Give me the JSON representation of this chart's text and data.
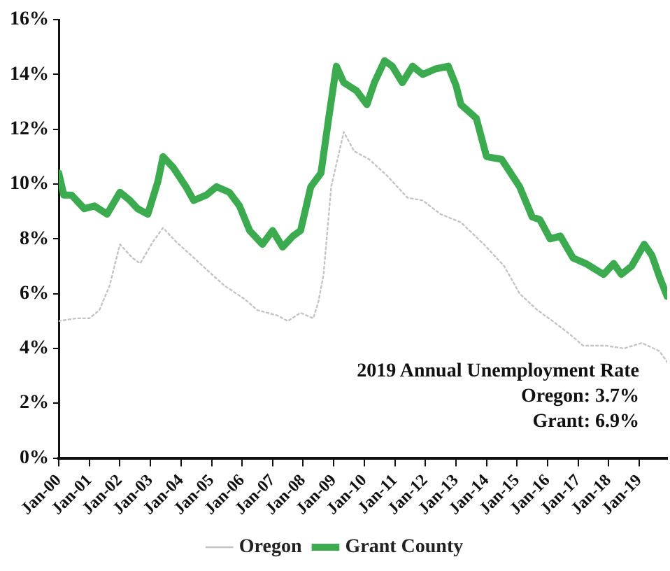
{
  "chart_data": {
    "type": "line",
    "xlim": [
      "2000-01",
      "2019-12"
    ],
    "ylim": [
      0,
      16
    ],
    "yticks": [
      {
        "value": 0,
        "label": "0%"
      },
      {
        "value": 2,
        "label": "2%"
      },
      {
        "value": 4,
        "label": "4%"
      },
      {
        "value": 6,
        "label": "6%"
      },
      {
        "value": 8,
        "label": "8%"
      },
      {
        "value": 10,
        "label": "10%"
      },
      {
        "value": 12,
        "label": "12%"
      },
      {
        "value": 14,
        "label": "14%"
      },
      {
        "value": 16,
        "label": "16%"
      }
    ],
    "xticks": [
      {
        "value": "2000-01",
        "label": "Jan-00"
      },
      {
        "value": "2001-01",
        "label": "Jan-01"
      },
      {
        "value": "2002-01",
        "label": "Jan-02"
      },
      {
        "value": "2003-01",
        "label": "Jan-03"
      },
      {
        "value": "2004-01",
        "label": "Jan-04"
      },
      {
        "value": "2005-01",
        "label": "Jan-05"
      },
      {
        "value": "2006-01",
        "label": "Jan-06"
      },
      {
        "value": "2007-01",
        "label": "Jan-07"
      },
      {
        "value": "2008-01",
        "label": "Jan-08"
      },
      {
        "value": "2009-01",
        "label": "Jan-09"
      },
      {
        "value": "2010-01",
        "label": "Jan-10"
      },
      {
        "value": "2011-01",
        "label": "Jan-11"
      },
      {
        "value": "2012-01",
        "label": "Jan-12"
      },
      {
        "value": "2013-01",
        "label": "Jan-13"
      },
      {
        "value": "2014-01",
        "label": "Jan-14"
      },
      {
        "value": "2015-01",
        "label": "Jan-15"
      },
      {
        "value": "2016-01",
        "label": "Jan-16"
      },
      {
        "value": "2017-01",
        "label": "Jan-17"
      },
      {
        "value": "2018-01",
        "label": "Jan-18"
      },
      {
        "value": "2019-01",
        "label": "Jan-19"
      }
    ],
    "grid": false,
    "legend": "bottom",
    "marker": "none",
    "annotations": [
      "2019 Annual Unemployment Rate",
      "Oregon: 3.7%",
      "Grant: 6.9%"
    ],
    "series": [
      {
        "name": "Oregon",
        "color": "#c4c4c4",
        "line_style": "dotted",
        "x": [
          "2000-01",
          "2000-08",
          "2001-01",
          "2001-05",
          "2001-09",
          "2002-01",
          "2002-06",
          "2002-09",
          "2003-02",
          "2003-06",
          "2003-11",
          "2004-05",
          "2004-12",
          "2005-06",
          "2006-02",
          "2006-07",
          "2007-03",
          "2007-07",
          "2007-12",
          "2008-05",
          "2008-07",
          "2008-09",
          "2008-12",
          "2009-05",
          "2009-09",
          "2010-03",
          "2010-10",
          "2011-06",
          "2011-12",
          "2012-07",
          "2013-03",
          "2013-12",
          "2014-08",
          "2015-02",
          "2015-09",
          "2016-03",
          "2016-10",
          "2017-03",
          "2017-12",
          "2018-07",
          "2019-02",
          "2019-09",
          "2019-12"
        ],
        "values": [
          5.0,
          5.1,
          5.1,
          5.4,
          6.3,
          7.8,
          7.3,
          7.1,
          7.9,
          8.4,
          7.9,
          7.4,
          6.8,
          6.3,
          5.8,
          5.4,
          5.2,
          5.0,
          5.3,
          5.1,
          5.7,
          6.7,
          9.9,
          11.9,
          11.2,
          10.9,
          10.3,
          9.5,
          9.4,
          8.9,
          8.6,
          7.8,
          7.0,
          6.0,
          5.4,
          5.0,
          4.5,
          4.1,
          4.1,
          4.0,
          4.2,
          3.9,
          3.5
        ]
      },
      {
        "name": "Grant County",
        "color": "#3caa4e",
        "line_style": "solid",
        "x": [
          "2000-01",
          "2000-03",
          "2000-06",
          "2000-11",
          "2001-03",
          "2001-08",
          "2002-01",
          "2002-05",
          "2002-08",
          "2002-12",
          "2003-04",
          "2003-06",
          "2003-10",
          "2004-03",
          "2004-06",
          "2004-11",
          "2005-03",
          "2005-08",
          "2005-12",
          "2006-04",
          "2006-09",
          "2007-01",
          "2007-05",
          "2007-09",
          "2007-12",
          "2008-04",
          "2008-08",
          "2008-11",
          "2009-02",
          "2009-05",
          "2009-10",
          "2010-02",
          "2010-05",
          "2010-09",
          "2010-12",
          "2011-04",
          "2011-08",
          "2011-12",
          "2012-05",
          "2012-10",
          "2013-01",
          "2013-03",
          "2013-09",
          "2014-01",
          "2014-07",
          "2015-02",
          "2015-07",
          "2015-10",
          "2016-02",
          "2016-06",
          "2016-11",
          "2017-04",
          "2017-11",
          "2018-03",
          "2018-06",
          "2018-10",
          "2019-03",
          "2019-06",
          "2019-09",
          "2019-12"
        ],
        "values": [
          10.4,
          9.6,
          9.6,
          9.1,
          9.2,
          8.9,
          9.7,
          9.4,
          9.1,
          8.9,
          10.1,
          11.0,
          10.6,
          9.9,
          9.4,
          9.6,
          9.9,
          9.7,
          9.2,
          8.3,
          7.8,
          8.3,
          7.7,
          8.1,
          8.3,
          9.9,
          10.4,
          12.4,
          14.3,
          13.7,
          13.4,
          12.9,
          13.7,
          14.5,
          14.3,
          13.7,
          14.3,
          14.0,
          14.2,
          14.3,
          13.6,
          12.9,
          12.4,
          11.0,
          10.9,
          9.9,
          8.8,
          8.7,
          8.0,
          8.1,
          7.3,
          7.1,
          6.7,
          7.1,
          6.7,
          7.0,
          7.8,
          7.4,
          6.6,
          5.9
        ]
      }
    ]
  }
}
